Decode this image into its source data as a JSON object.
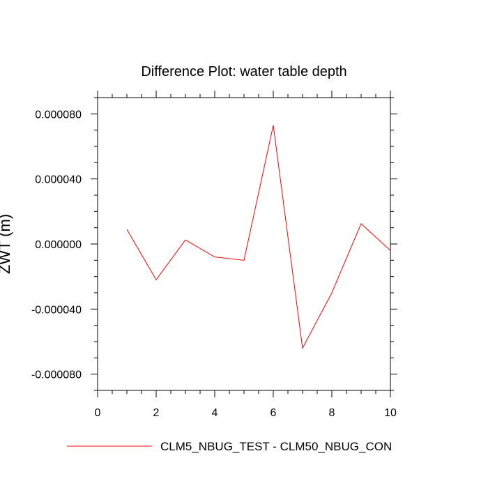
{
  "chart_data": {
    "type": "line",
    "title": "Difference Plot: water table depth",
    "xlabel": "",
    "ylabel": "ZWT (m)",
    "xlim": [
      0,
      10
    ],
    "ylim": [
      -9e-05,
      9e-05
    ],
    "x_ticks": [
      0,
      2,
      4,
      6,
      8,
      10
    ],
    "x_tick_labels": [
      "0",
      "2",
      "4",
      "6",
      "8",
      "10"
    ],
    "y_ticks": [
      -8e-05,
      -4e-05,
      0.0,
      4e-05,
      8e-05
    ],
    "y_tick_labels": [
      "-0.000080",
      "-0.000040",
      "0.000000",
      "0.000040",
      "0.000080"
    ],
    "grid": false,
    "legend_position": "bottom",
    "series": [
      {
        "name": "CLM5_NBUG_TEST - CLM50_NBUG_CON",
        "color": "#ff0000",
        "x": [
          1,
          2,
          3,
          4,
          5,
          6,
          7,
          8,
          9,
          10
        ],
        "y": [
          9e-06,
          -2.2e-05,
          2.5e-06,
          -8e-06,
          -1e-05,
          7.3e-05,
          -6.4e-05,
          -3e-05,
          1.25e-05,
          -4e-06
        ]
      }
    ]
  }
}
